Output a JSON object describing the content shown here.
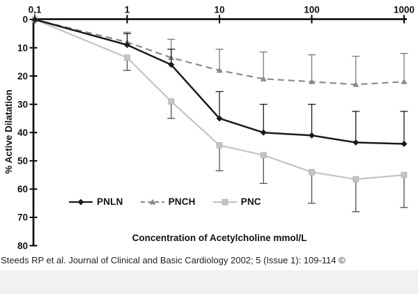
{
  "chart_data": {
    "type": "line",
    "title": "",
    "xlabel": "Concentration of Acetylcholine mmol/L",
    "ylabel": "% Active Dilatation",
    "x_scale": "log",
    "x_tick_labels": [
      "0,1",
      "1",
      "10",
      "100",
      "1000"
    ],
    "x_tick_values": [
      0.1,
      1,
      10,
      100,
      1000
    ],
    "y_ticks": [
      0,
      10,
      20,
      30,
      40,
      50,
      60,
      70,
      80
    ],
    "y_axis_direction": "inverted (0 at top, 80 at bottom)",
    "xlim": [
      0.1,
      1000
    ],
    "ylim": [
      0,
      80
    ],
    "grid": false,
    "x": [
      0.1,
      1,
      3,
      10,
      30,
      100,
      300,
      1000
    ],
    "series": [
      {
        "name": "PNLN",
        "marker": "diamond",
        "line_style": "solid",
        "color": "#1a1a1a",
        "error_bar_color": "#1a1a1a",
        "error_direction": "up",
        "values": [
          0,
          9,
          16,
          35,
          40,
          41,
          43.5,
          44
        ],
        "errors": [
          0,
          4,
          5.5,
          9.5,
          10,
          11,
          11,
          11.5
        ]
      },
      {
        "name": "PNCH",
        "marker": "triangle",
        "line_style": "dashed",
        "color": "#8a8a8a",
        "error_bar_color": "#7a7a7a",
        "error_direction": "up",
        "values": [
          0,
          8,
          13.5,
          18,
          21,
          22,
          23,
          22
        ],
        "errors": [
          0,
          3.5,
          6.5,
          7.5,
          9.5,
          9.5,
          10,
          10
        ]
      },
      {
        "name": "PNC",
        "marker": "square",
        "line_style": "solid",
        "color": "#c4c4c4",
        "error_bar_color": "#4d4d4d",
        "error_direction": "down",
        "values": [
          0,
          13.5,
          29,
          44.5,
          48,
          54,
          56.5,
          55
        ],
        "errors": [
          0,
          4.5,
          6,
          9,
          10,
          11,
          11.5,
          11.5
        ]
      }
    ],
    "legend": {
      "position": "inside-bottom-left",
      "entries": [
        "PNLN",
        "PNCH",
        "PNC"
      ]
    },
    "axis_color": "#000000"
  },
  "citation": "Steeds RP et al. Journal of Clinical and Basic Cardiology 2002; 5 (Issue 1): 109-114 ©"
}
